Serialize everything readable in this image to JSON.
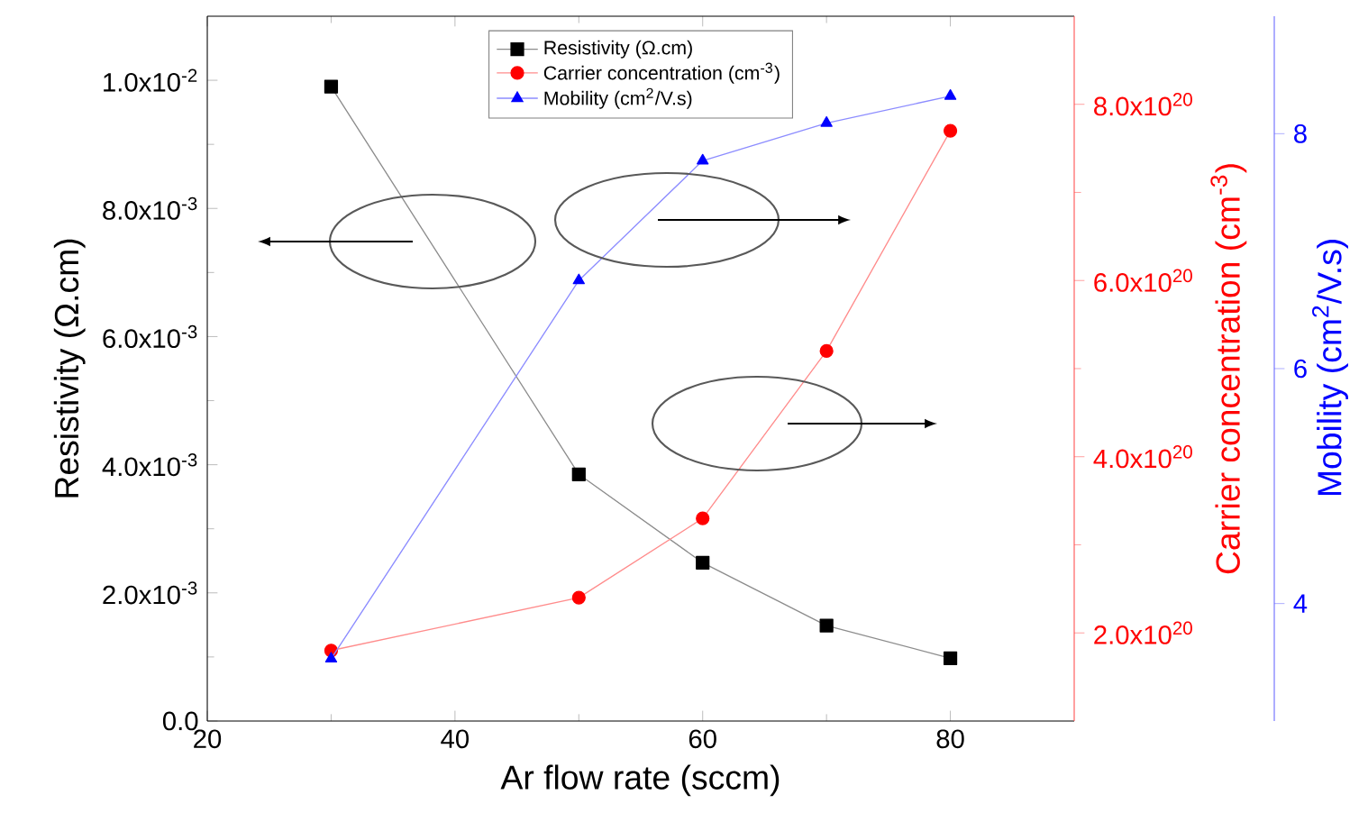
{
  "chart_data": {
    "type": "line",
    "xlabel": "Ar flow rate (sccm)",
    "ylabel": "Resistivity (Ω.cm)",
    "y2label": "Carrier concentration (cm$^{-3}$)",
    "y3label": "Mobility (cm$^{2}$/V.s)",
    "x": [
      30,
      50,
      60,
      70,
      80
    ],
    "xlim": [
      20,
      90
    ],
    "xticks": [
      20,
      40,
      60,
      80
    ],
    "ylim": [
      0,
      0.011
    ],
    "yticks": [
      {
        "value": 0,
        "label": "0.0"
      },
      {
        "value": 0.002,
        "label": "2.0x10$^{-3}$"
      },
      {
        "value": 0.004,
        "label": "4.0x10$^{-3}$"
      },
      {
        "value": 0.006,
        "label": "6.0x10$^{-3}$"
      },
      {
        "value": 0.008,
        "label": "8.0x10$^{-3}$"
      },
      {
        "value": 0.01,
        "label": "1.0x10$^{-2}$"
      }
    ],
    "y2lim": [
      1e+20,
      9e+20
    ],
    "y2ticks": [
      {
        "value": 2e+20,
        "label": "2.0x10$^{20}$"
      },
      {
        "value": 4e+20,
        "label": "4.0x10$^{20}$"
      },
      {
        "value": 6e+20,
        "label": "6.0x10$^{20}$"
      },
      {
        "value": 8e+20,
        "label": "8.0x10$^{20}$"
      }
    ],
    "y3lim": [
      3,
      9
    ],
    "y3ticks": [
      4,
      6,
      8
    ],
    "series": [
      {
        "name": "Resistivity (Ω.cm)",
        "color": "#000000",
        "marker": "square",
        "values": [
          0.0099,
          0.00385,
          0.00247,
          0.00149,
          0.00098
        ]
      },
      {
        "name": "Carrier concentration (cm$^{-3}$)",
        "color": "#ff0000",
        "marker": "circle",
        "axis": "y2",
        "values": [
          1.8e+20,
          2.4e+20,
          3.3e+20,
          5.2e+20,
          7.7e+20
        ]
      },
      {
        "name": "Mobility (cm$^{2}$/V.s)",
        "color": "#0000ff",
        "marker": "triangle",
        "axis": "y3",
        "values": [
          3.53,
          6.75,
          7.77,
          8.09,
          8.32
        ]
      }
    ],
    "legend": "top",
    "grid": false
  }
}
